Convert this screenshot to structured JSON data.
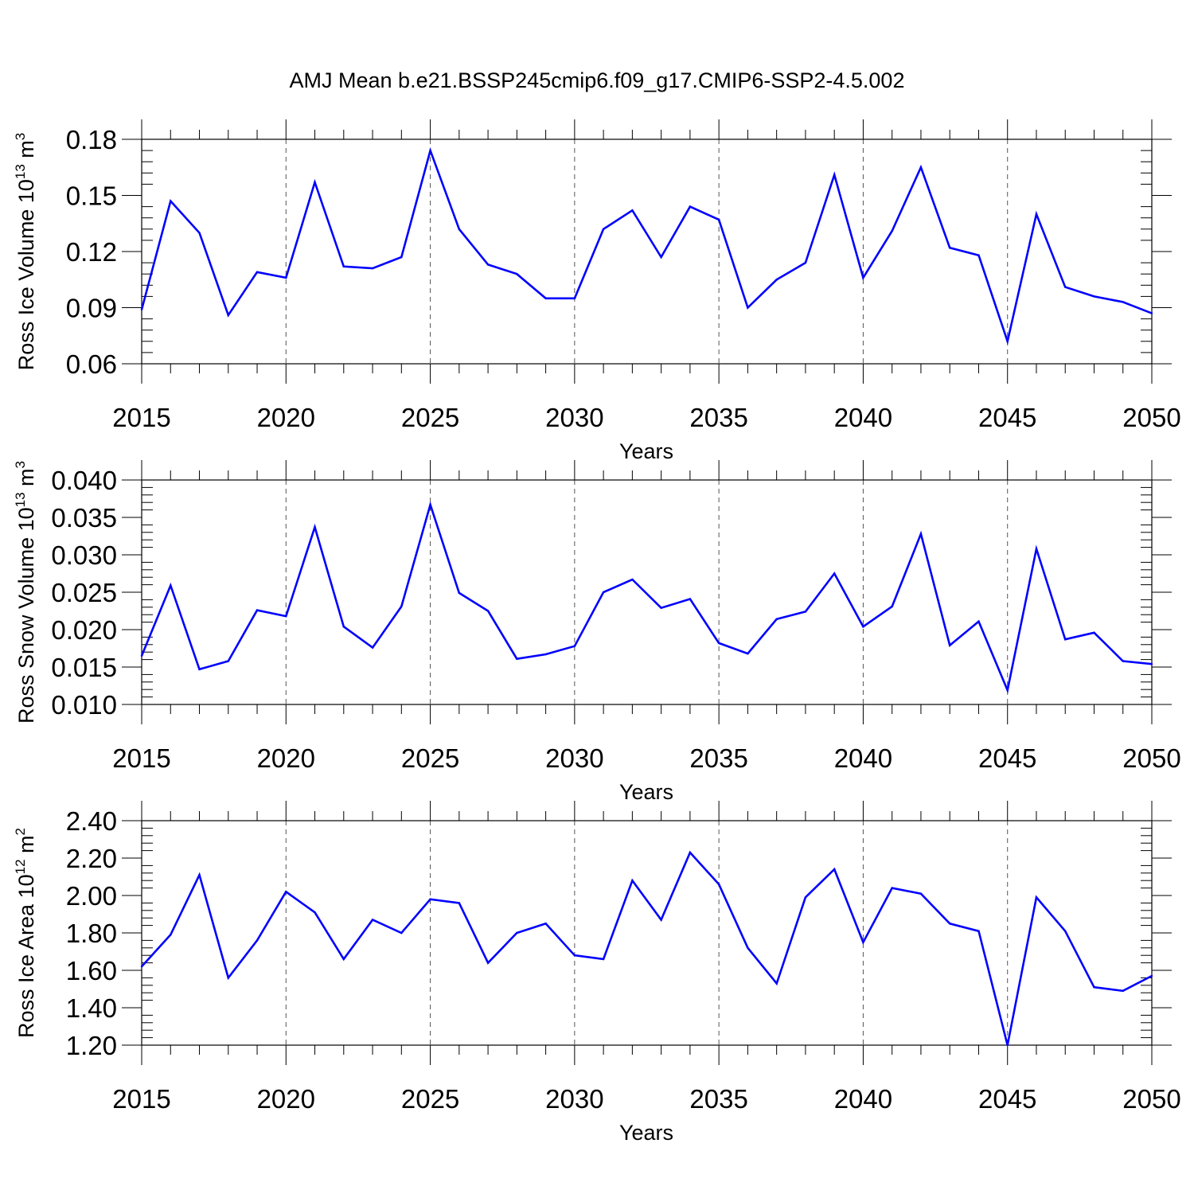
{
  "title": "AMJ Mean b.e21.BSSP245cmip6.f09_g17.CMIP6-SSP2-4.5.002",
  "line_color": "#0000ff",
  "chart_data": [
    {
      "type": "line",
      "ylabel_main": "Ross Ice Volume 10",
      "ylabel_exp": "13",
      "ylabel_unit": "m",
      "ylabel_unit_exp": "3",
      "xlabel": "Years",
      "xlim": [
        2015,
        2050
      ],
      "ylim": [
        0.06,
        0.18
      ],
      "yticks": [
        0.06,
        0.09,
        0.12,
        0.15,
        0.18
      ],
      "ytick_labels": [
        "0.06",
        "0.09",
        "0.12",
        "0.15",
        "0.18"
      ],
      "yminor_step": 0.006,
      "xticks": [
        2015,
        2020,
        2025,
        2030,
        2035,
        2040,
        2045,
        2050
      ],
      "xtick_labels": [
        "2015",
        "2020",
        "2025",
        "2030",
        "2035",
        "2040",
        "2045",
        "2050"
      ],
      "x": [
        2015,
        2016,
        2017,
        2018,
        2019,
        2020,
        2021,
        2022,
        2023,
        2024,
        2025,
        2026,
        2027,
        2028,
        2029,
        2030,
        2031,
        2032,
        2033,
        2034,
        2035,
        2036,
        2037,
        2038,
        2039,
        2040,
        2041,
        2042,
        2043,
        2044,
        2045,
        2046,
        2047,
        2048,
        2049,
        2050
      ],
      "values": [
        0.089,
        0.147,
        0.13,
        0.086,
        0.109,
        0.106,
        0.157,
        0.112,
        0.111,
        0.117,
        0.174,
        0.132,
        0.113,
        0.108,
        0.095,
        0.095,
        0.132,
        0.142,
        0.117,
        0.144,
        0.137,
        0.09,
        0.105,
        0.114,
        0.161,
        0.106,
        0.131,
        0.165,
        0.122,
        0.118,
        0.072,
        0.14,
        0.101,
        0.096,
        0.093,
        0.087
      ]
    },
    {
      "type": "line",
      "ylabel_main": "Ross Snow Volume 10",
      "ylabel_exp": "13",
      "ylabel_unit": "m",
      "ylabel_unit_exp": "3",
      "xlabel": "Years",
      "xlim": [
        2015,
        2050
      ],
      "ylim": [
        0.01,
        0.04
      ],
      "yticks": [
        0.01,
        0.015,
        0.02,
        0.025,
        0.03,
        0.035,
        0.04
      ],
      "ytick_labels": [
        "0.010",
        "0.015",
        "0.020",
        "0.025",
        "0.030",
        "0.035",
        "0.040"
      ],
      "yminor_step": 0.001,
      "xticks": [
        2015,
        2020,
        2025,
        2030,
        2035,
        2040,
        2045,
        2050
      ],
      "xtick_labels": [
        "2015",
        "2020",
        "2025",
        "2030",
        "2035",
        "2040",
        "2045",
        "2050"
      ],
      "x": [
        2015,
        2016,
        2017,
        2018,
        2019,
        2020,
        2021,
        2022,
        2023,
        2024,
        2025,
        2026,
        2027,
        2028,
        2029,
        2030,
        2031,
        2032,
        2033,
        2034,
        2035,
        2036,
        2037,
        2038,
        2039,
        2040,
        2041,
        2042,
        2043,
        2044,
        2045,
        2046,
        2047,
        2048,
        2049,
        2050
      ],
      "values": [
        0.0165,
        0.0259,
        0.0147,
        0.0158,
        0.0226,
        0.0218,
        0.0337,
        0.0204,
        0.0176,
        0.0231,
        0.0367,
        0.0249,
        0.0225,
        0.0161,
        0.0167,
        0.0178,
        0.025,
        0.0267,
        0.0229,
        0.0241,
        0.0182,
        0.0168,
        0.0214,
        0.0224,
        0.0275,
        0.0204,
        0.0231,
        0.0328,
        0.0179,
        0.0211,
        0.0119,
        0.0308,
        0.0187,
        0.0196,
        0.0158,
        0.0154
      ]
    },
    {
      "type": "line",
      "ylabel_main": "Ross Ice Area 10",
      "ylabel_exp": "12",
      "ylabel_unit": "m",
      "ylabel_unit_exp": "2",
      "xlabel": "Years",
      "xlim": [
        2015,
        2050
      ],
      "ylim": [
        1.2,
        2.4
      ],
      "yticks": [
        1.2,
        1.4,
        1.6,
        1.8,
        2.0,
        2.2,
        2.4
      ],
      "ytick_labels": [
        "1.20",
        "1.40",
        "1.60",
        "1.80",
        "2.00",
        "2.20",
        "2.40"
      ],
      "yminor_step": 0.04,
      "xticks": [
        2015,
        2020,
        2025,
        2030,
        2035,
        2040,
        2045,
        2050
      ],
      "xtick_labels": [
        "2015",
        "2020",
        "2025",
        "2030",
        "2035",
        "2040",
        "2045",
        "2050"
      ],
      "x": [
        2015,
        2016,
        2017,
        2018,
        2019,
        2020,
        2021,
        2022,
        2023,
        2024,
        2025,
        2026,
        2027,
        2028,
        2029,
        2030,
        2031,
        2032,
        2033,
        2034,
        2035,
        2036,
        2037,
        2038,
        2039,
        2040,
        2041,
        2042,
        2043,
        2044,
        2045,
        2046,
        2047,
        2048,
        2049,
        2050
      ],
      "values": [
        1.62,
        1.79,
        2.11,
        1.56,
        1.76,
        2.02,
        1.91,
        1.66,
        1.87,
        1.8,
        1.98,
        1.96,
        1.64,
        1.8,
        1.85,
        1.68,
        1.66,
        2.08,
        1.87,
        2.23,
        2.06,
        1.72,
        1.53,
        1.99,
        2.14,
        1.75,
        2.04,
        2.01,
        1.85,
        1.81,
        1.2,
        1.99,
        1.81,
        1.51,
        1.49,
        1.57
      ]
    }
  ]
}
